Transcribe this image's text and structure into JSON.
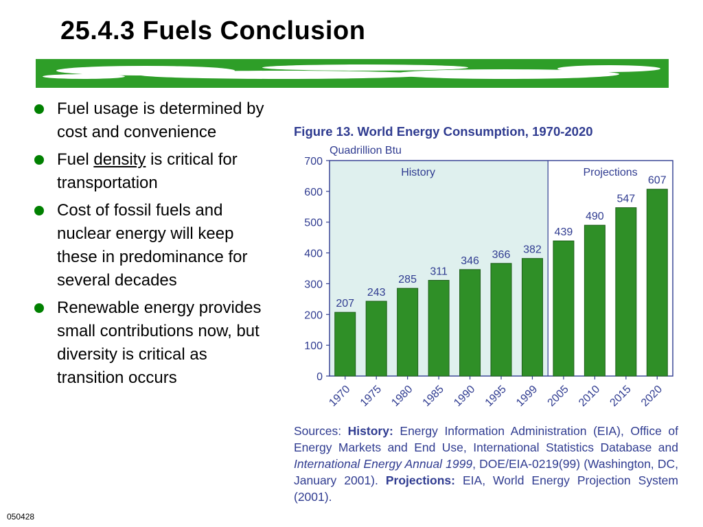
{
  "slide": {
    "title": "25.4.3 Fuels Conclusion",
    "number": "050428",
    "brand_color": "#2e9e28",
    "bullet_color": "#008000"
  },
  "bullets": [
    {
      "text": "Fuel usage is determined by cost and convenience"
    },
    {
      "pre": "Fuel ",
      "underlined": "density",
      "post": " is critical for transportation"
    },
    {
      "text": "Cost of fossil fuels and nuclear energy will keep these in predominance for several decades"
    },
    {
      "text": "Renewable energy provides small contributions now, but diversity is critical as transition occurs"
    }
  ],
  "chart_data": {
    "type": "bar",
    "title": "Figure 13.  World Energy Consumption, 1970-2020",
    "ylabel": "Quadrillion Btu",
    "xlabel": "",
    "categories": [
      "1970",
      "1975",
      "1980",
      "1985",
      "1990",
      "1995",
      "1999",
      "2005",
      "2010",
      "2015",
      "2020"
    ],
    "values": [
      207,
      243,
      285,
      311,
      346,
      366,
      382,
      439,
      490,
      547,
      607
    ],
    "data_labels": [
      "207",
      "243",
      "285",
      "311",
      "346",
      "366",
      "382",
      "439",
      "490",
      "547",
      "607"
    ],
    "ylim": [
      0,
      700
    ],
    "yticks": [
      0,
      100,
      200,
      300,
      400,
      500,
      600,
      700
    ],
    "regions": [
      {
        "label": "History",
        "from": "1970",
        "to": "1999",
        "color": "#dff0ee"
      },
      {
        "label": "Projections",
        "from": "2005",
        "to": "2020",
        "color": "#ffffff"
      }
    ],
    "bar_color": "#2f8f27",
    "text_color": "#2f3b90",
    "grid": false,
    "legend": "none"
  },
  "sources": {
    "lead": "Sources: ",
    "history_label": "History:",
    "history_text_a": " Energy Information Administration (EIA), Office of Energy Markets and End Use, International Statistics Database and ",
    "history_italic": "International Energy Annual 1999",
    "history_text_b": ", DOE/EIA-0219(99) (Washington, DC, January 2001). ",
    "projections_label": "Projections:",
    "projections_text": " EIA, World Energy Projection System (2001)."
  }
}
